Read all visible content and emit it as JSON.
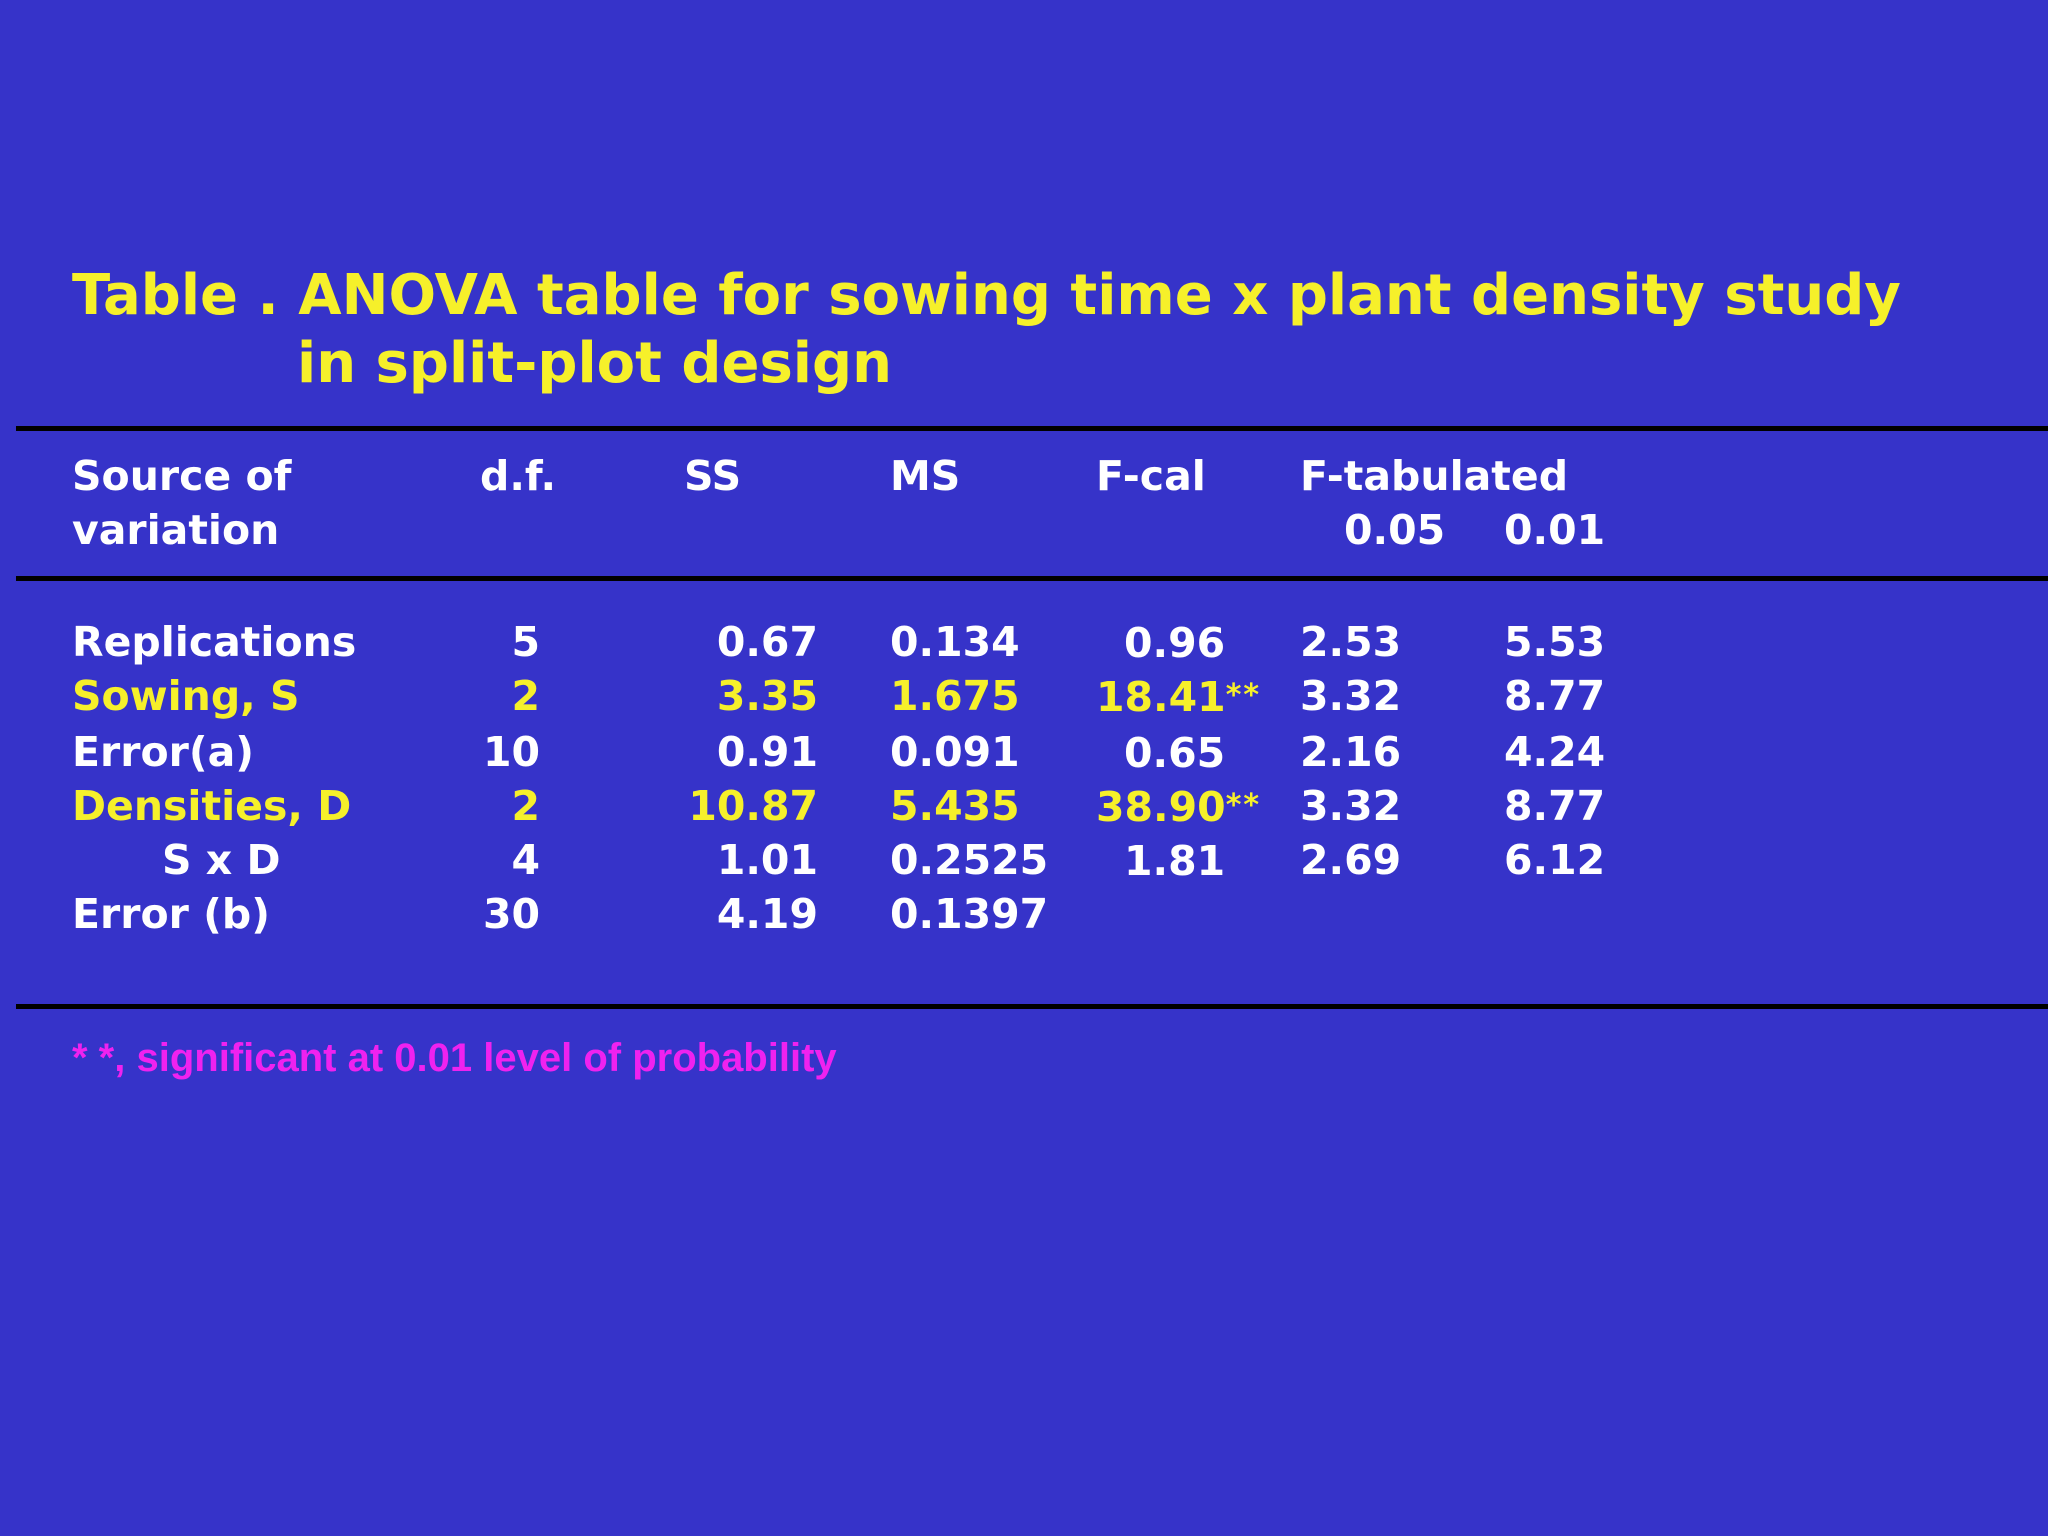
{
  "title": {
    "line1": "Table . ANOVA table for sowing time x plant density study",
    "line2": "in split-plot design"
  },
  "headers": {
    "source_line1": "Source  of",
    "source_line2": "variation",
    "df": "d.f.",
    "ss": "SS",
    "ms": "MS",
    "fcal": "F-cal",
    "ftab": "F-tabulated",
    "ftab_05": "0.05",
    "ftab_01": "0.01"
  },
  "rows": [
    {
      "source": "Replications",
      "df": "5",
      "ss": "0.67",
      "ms": "0.134",
      "fcal": "0.96",
      "stars": "",
      "f05": "2.53",
      "f01": "5.53"
    },
    {
      "source": "Sowing, S",
      "df": "2",
      "ss": "3.35",
      "ms": "1.675",
      "fcal": "18.41",
      "stars": "**",
      "f05": "3.32",
      "f01": "8.77"
    },
    {
      "source": "Error(a)",
      "df": "10",
      "ss": "0.91",
      "ms": "0.091",
      "fcal": "0.65",
      "stars": "",
      "f05": "2.16",
      "f01": "4.24"
    },
    {
      "source": "Densities, D",
      "df": "2",
      "ss": "10.87",
      "ms": "5.435",
      "fcal": "38.90",
      "stars": "**",
      "f05": "3.32",
      "f01": "8.77"
    },
    {
      "source": "S x D",
      "df": "4",
      "ss": "1.01",
      "ms": "0.2525",
      "fcal": "1.81",
      "stars": "",
      "f05": "2.69",
      "f01": "6.12"
    },
    {
      "source": "Error  (b)",
      "df": "30",
      "ss": "4.19",
      "ms": "0.1397",
      "fcal": "",
      "stars": "",
      "f05": "",
      "f01": ""
    }
  ],
  "footnote": "* *, significant at 0.01 level of probability",
  "colors": {
    "background": "#3633c9",
    "highlight": "#f6f02a",
    "text": "#ffffff",
    "footnote": "#ef22ef",
    "rule": "#000000"
  }
}
